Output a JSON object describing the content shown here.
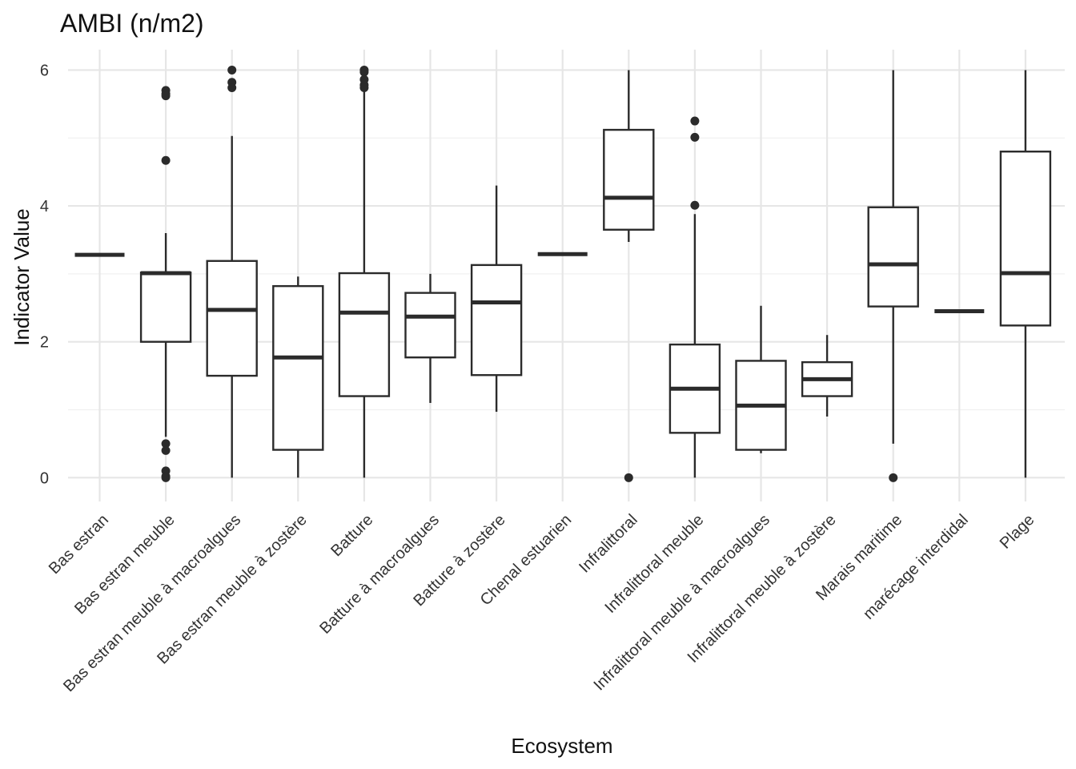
{
  "chart_data": {
    "type": "boxplot",
    "title": "AMBI (n/m2)",
    "xlabel": "Ecosystem",
    "ylabel": "Indicator Value",
    "ylim": [
      -0.35,
      6.3
    ],
    "yticks": [
      0,
      2,
      4,
      6
    ],
    "grid": true,
    "categories": [
      "Bas estran",
      "Bas estran meuble",
      "Bas estran meuble à macroalgues",
      "Bas estran meuble à zostère",
      "Batture",
      "Batture à macroalgues",
      "Batture à zostère",
      "Chenal estuarien",
      "Infralittoral",
      "Infralittoral meuble",
      "Infralittoral meuble à macroalgues",
      "Infralittoral meuble à zostère",
      "Marais maritime",
      "marécage interdidal",
      "Plage"
    ],
    "boxes": [
      {
        "min": 3.28,
        "q1": 3.28,
        "median": 3.28,
        "q3": 3.28,
        "max": 3.28,
        "outliers": []
      },
      {
        "min": 0.6,
        "q1": 2.0,
        "median": 3.01,
        "q3": 3.02,
        "max": 3.6,
        "outliers": [
          5.7,
          5.65,
          5.62,
          4.67,
          0.5,
          0.4,
          0.1,
          0.02,
          0.0
        ]
      },
      {
        "min": 0.0,
        "q1": 1.5,
        "median": 2.47,
        "q3": 3.19,
        "max": 5.03,
        "outliers": [
          6.0,
          5.82,
          5.74
        ]
      },
      {
        "min": 0.0,
        "q1": 0.41,
        "median": 1.77,
        "q3": 2.82,
        "max": 2.96,
        "outliers": []
      },
      {
        "min": 0.0,
        "q1": 1.2,
        "median": 2.43,
        "q3": 3.01,
        "max": 5.7,
        "outliers": [
          6.0,
          5.97,
          5.86,
          5.78,
          5.74
        ]
      },
      {
        "min": 1.1,
        "q1": 1.77,
        "median": 2.37,
        "q3": 2.72,
        "max": 3.0,
        "outliers": []
      },
      {
        "min": 0.97,
        "q1": 1.51,
        "median": 2.58,
        "q3": 3.13,
        "max": 4.3,
        "outliers": []
      },
      {
        "min": 3.29,
        "q1": 3.29,
        "median": 3.29,
        "q3": 3.29,
        "max": 3.29,
        "outliers": []
      },
      {
        "min": 3.47,
        "q1": 3.65,
        "median": 4.12,
        "q3": 5.12,
        "max": 6.0,
        "outliers": [
          0.0
        ]
      },
      {
        "min": 0.0,
        "q1": 0.66,
        "median": 1.31,
        "q3": 1.96,
        "max": 3.88,
        "outliers": [
          5.25,
          5.01,
          4.01
        ]
      },
      {
        "min": 0.36,
        "q1": 0.41,
        "median": 1.06,
        "q3": 1.72,
        "max": 2.53,
        "outliers": []
      },
      {
        "min": 0.9,
        "q1": 1.2,
        "median": 1.45,
        "q3": 1.7,
        "max": 2.1,
        "outliers": []
      },
      {
        "min": 0.5,
        "q1": 2.52,
        "median": 3.14,
        "q3": 3.98,
        "max": 6.0,
        "outliers": [
          0.0
        ]
      },
      {
        "min": 2.45,
        "q1": 2.45,
        "median": 2.45,
        "q3": 2.45,
        "max": 2.45,
        "outliers": []
      },
      {
        "min": 0.0,
        "q1": 2.24,
        "median": 3.01,
        "q3": 4.8,
        "max": 6.0,
        "outliers": []
      }
    ]
  }
}
